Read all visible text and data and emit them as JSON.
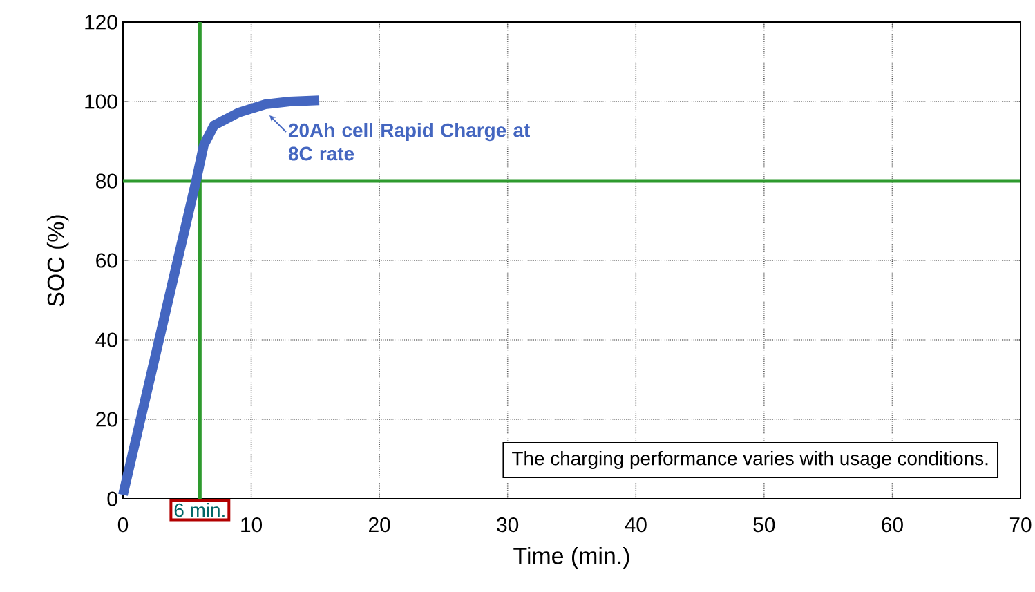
{
  "chart_data": {
    "type": "line",
    "xlabel": "Time (min.)",
    "ylabel": "SOC (%)",
    "x": [
      0,
      5.7,
      6.3,
      7.1,
      9.0,
      11.1,
      13.0,
      15.3
    ],
    "series": [
      {
        "color": "#4466c0",
        "values": [
          1,
          80,
          89,
          94,
          97.2,
          99.3,
          100,
          100.3
        ]
      }
    ],
    "xlim": [
      0,
      70
    ],
    "xticks": [
      0,
      10,
      20,
      30,
      40,
      50,
      60,
      70
    ],
    "ylim": [
      0,
      120
    ],
    "yticks": [
      0,
      20,
      40,
      60,
      80,
      100,
      120
    ],
    "grid": true,
    "line_style": "solid",
    "marker": "none",
    "ref_lines": [
      {
        "axis": "x",
        "value": 6,
        "label": "6 min.",
        "color": "#2e9a2e"
      },
      {
        "axis": "y",
        "value": 80,
        "color": "#2e9a2e"
      }
    ],
    "annotations": [
      {
        "text": "20Ah cell Rapid Charge at 8C rate",
        "x": 11.1,
        "y": 99.3
      },
      "The charging performance varies with usage conditions."
    ]
  }
}
